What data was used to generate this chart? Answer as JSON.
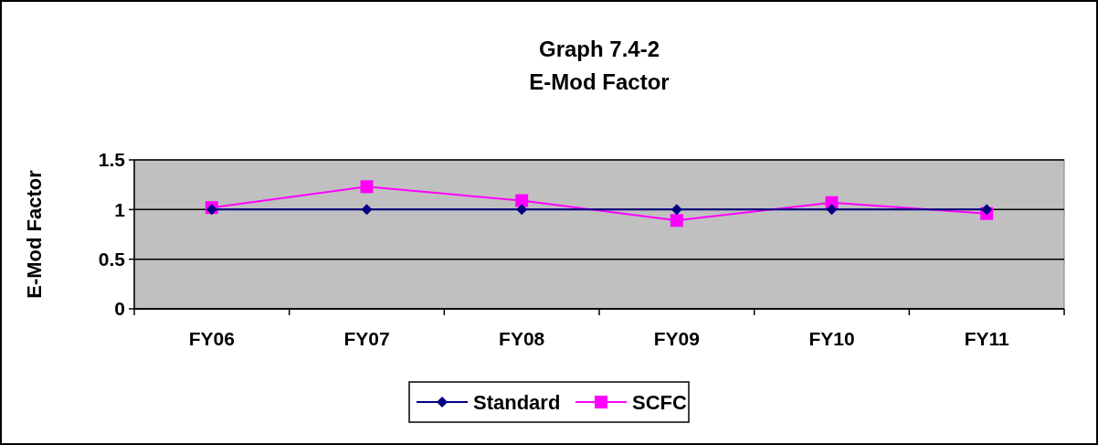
{
  "chart_data": {
    "type": "line",
    "title": "Graph 7.4-2\nE-Mod Factor",
    "ylabel": "E-Mod Factor",
    "categories": [
      "FY06",
      "FY07",
      "FY08",
      "FY09",
      "FY10",
      "FY11"
    ],
    "series": [
      {
        "name": "Standard",
        "color": "#000080",
        "marker": "diamond",
        "values": [
          1,
          1,
          1,
          1,
          1,
          1
        ]
      },
      {
        "name": "SCFC",
        "color": "#ff00ff",
        "marker": "square",
        "values": [
          1.02,
          1.23,
          1.09,
          0.89,
          1.07,
          0.96
        ]
      }
    ],
    "ylim": [
      0,
      1.5
    ],
    "yticks": [
      0,
      0.5,
      1,
      1.5
    ],
    "grid": "y",
    "legend": "bottom"
  }
}
